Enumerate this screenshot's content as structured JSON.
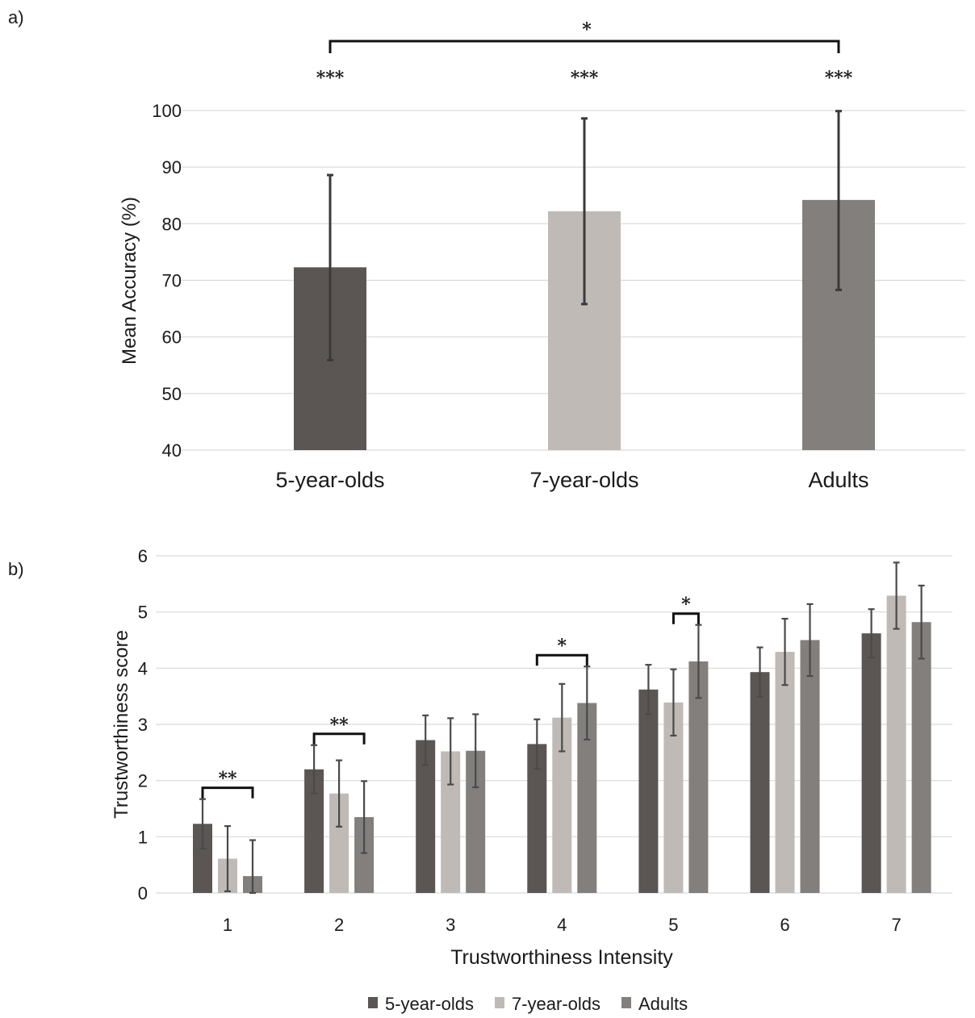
{
  "panel_labels": {
    "a": "a)",
    "b": "b)"
  },
  "colors": {
    "g5": "#5b5653",
    "g7": "#bfbab6",
    "adults": "#827f7c"
  },
  "chart_data": [
    {
      "type": "bar",
      "panel": "a)",
      "categories": [
        "5-year-olds",
        "7-year-olds",
        "Adults"
      ],
      "values": [
        72.3,
        82.2,
        84.2
      ],
      "error_low": [
        55.9,
        65.8,
        68.3
      ],
      "error_high": [
        88.6,
        98.6,
        99.9
      ],
      "ylabel": "Mean Accuracy (%)",
      "xlabel": "",
      "ylim": [
        40,
        100
      ],
      "yticks": [
        "40",
        "50",
        "60",
        "70",
        "80",
        "90",
        "100"
      ],
      "grid": true,
      "significance": {
        "bar_marks": [
          "***",
          "***",
          "***"
        ],
        "bracket": {
          "from": 0,
          "to": 2,
          "mark": "*"
        }
      }
    },
    {
      "type": "bar",
      "panel": "b)",
      "categories": [
        "1",
        "2",
        "3",
        "4",
        "5",
        "6",
        "7"
      ],
      "series": [
        {
          "name": "5-year-olds",
          "values": [
            1.23,
            2.2,
            2.72,
            2.65,
            3.62,
            3.93,
            4.62
          ],
          "error": [
            0.44,
            0.43,
            0.44,
            0.44,
            0.44,
            0.44,
            0.43
          ]
        },
        {
          "name": "7-year-olds",
          "values": [
            0.61,
            1.77,
            2.52,
            3.12,
            3.39,
            4.29,
            5.29
          ],
          "error": [
            0.58,
            0.59,
            0.59,
            0.6,
            0.59,
            0.59,
            0.59
          ]
        },
        {
          "name": "Adults",
          "values": [
            0.3,
            1.35,
            2.53,
            3.38,
            4.12,
            4.5,
            4.82
          ],
          "error": [
            0.64,
            0.64,
            0.65,
            0.65,
            0.65,
            0.64,
            0.65
          ]
        }
      ],
      "ylabel": "Trustworthiness score",
      "xlabel": "Trustworthiness Intensity",
      "ylim": [
        0,
        6
      ],
      "yticks": [
        "0",
        "1",
        "2",
        "3",
        "4",
        "5",
        "6"
      ],
      "grid": true,
      "legend_position": "bottom",
      "significance": [
        {
          "category": 0,
          "from_series": 0,
          "to_series": 2,
          "mark": "**"
        },
        {
          "category": 1,
          "from_series": 0,
          "to_series": 2,
          "mark": "**"
        },
        {
          "category": 3,
          "from_series": 0,
          "to_series": 2,
          "mark": "*"
        },
        {
          "category": 4,
          "from_series": 1,
          "to_series": 2,
          "mark": "*"
        }
      ]
    }
  ]
}
